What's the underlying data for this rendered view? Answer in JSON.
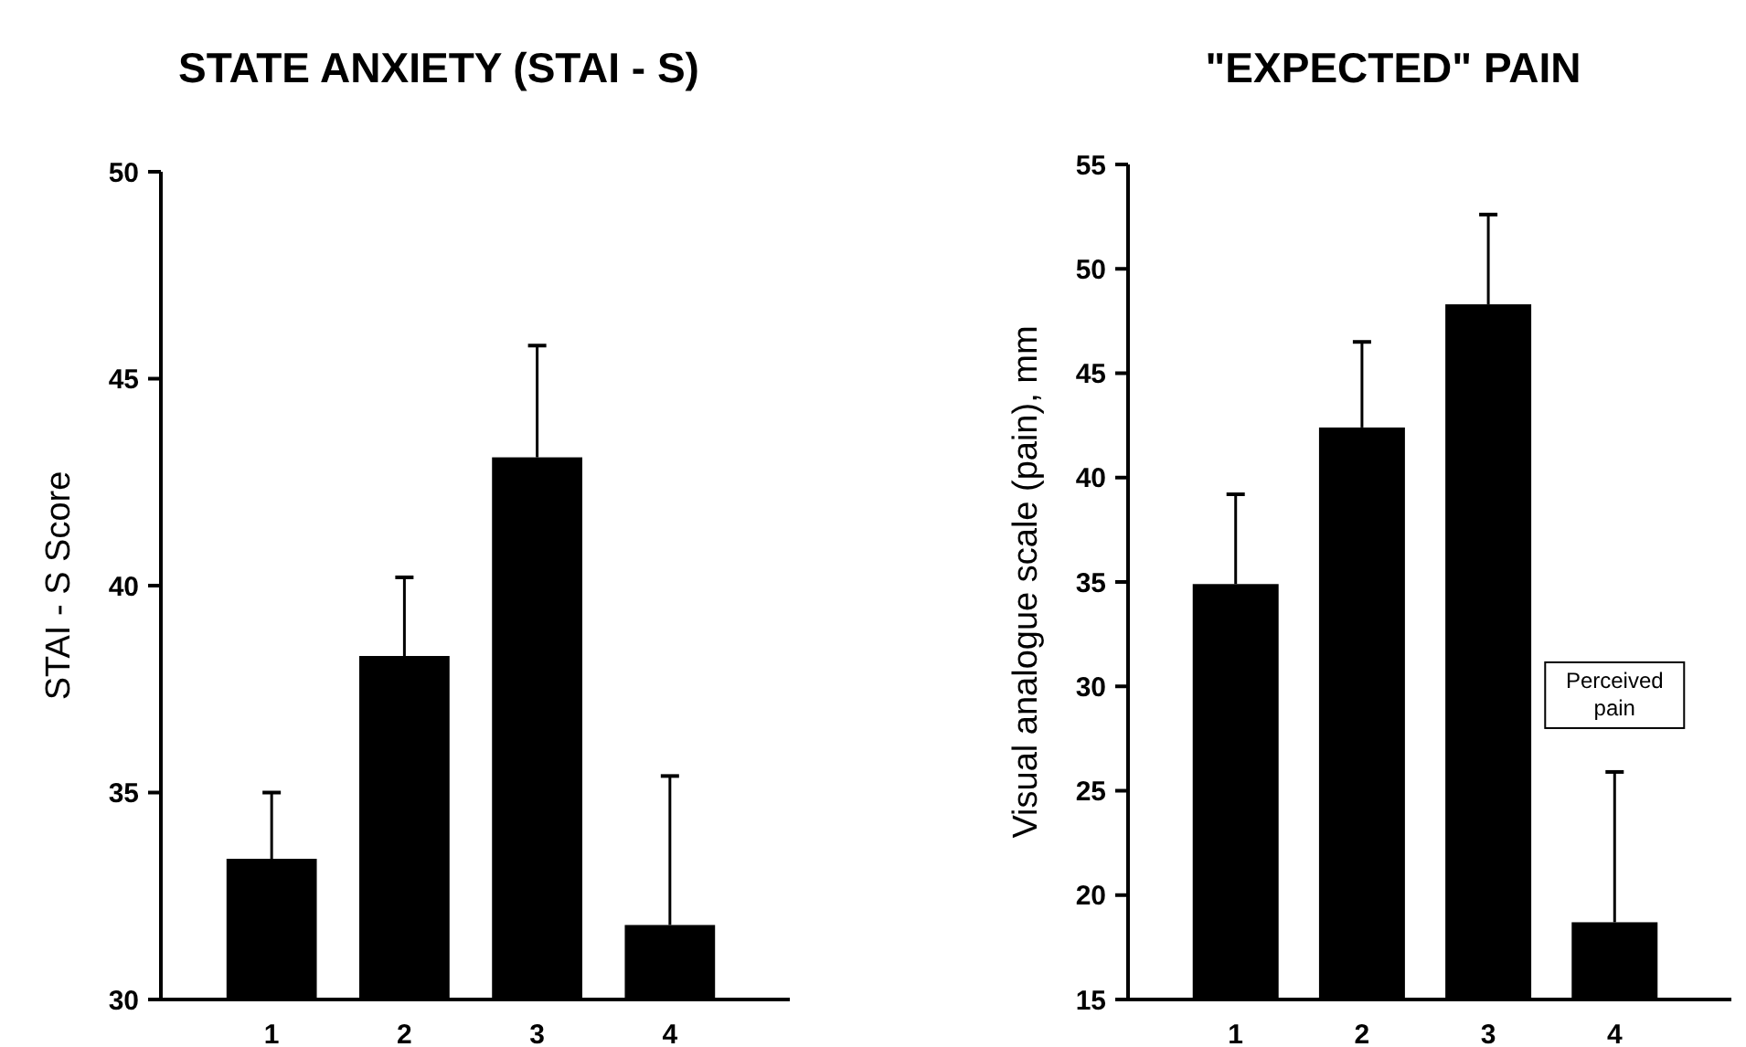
{
  "chart_data": [
    {
      "type": "bar",
      "title": "STATE ANXIETY (STAI - S)",
      "ylabel": "STAI - S Score",
      "categories": [
        "1",
        "2",
        "3",
        "4"
      ],
      "values": [
        33.4,
        38.3,
        43.1,
        31.8
      ],
      "color": "#000000",
      "errors": [
        [
          33.4,
          35.0
        ],
        [
          38.3,
          40.2
        ],
        [
          43.1,
          45.8
        ],
        [
          31.8,
          35.4
        ]
      ],
      "ylim": [
        30,
        50
      ],
      "yticks": [
        30,
        35,
        40,
        45,
        50
      ],
      "grid": false
    },
    {
      "type": "bar",
      "title": "\"EXPECTED\" PAIN",
      "ylabel": "Visual analogue scale (pain), mm",
      "categories": [
        "1",
        "2",
        "3",
        "4"
      ],
      "values": [
        34.9,
        42.4,
        48.3,
        18.7
      ],
      "color": "#000000",
      "errors": [
        [
          34.9,
          39.2
        ],
        [
          42.4,
          46.5
        ],
        [
          48.3,
          52.6
        ],
        [
          18.7,
          25.9
        ]
      ],
      "ylim": [
        15,
        55
      ],
      "yticks": [
        15,
        20,
        25,
        30,
        35,
        40,
        45,
        50,
        55
      ],
      "grid": false,
      "annotations": [
        "Perceived pain"
      ]
    }
  ]
}
